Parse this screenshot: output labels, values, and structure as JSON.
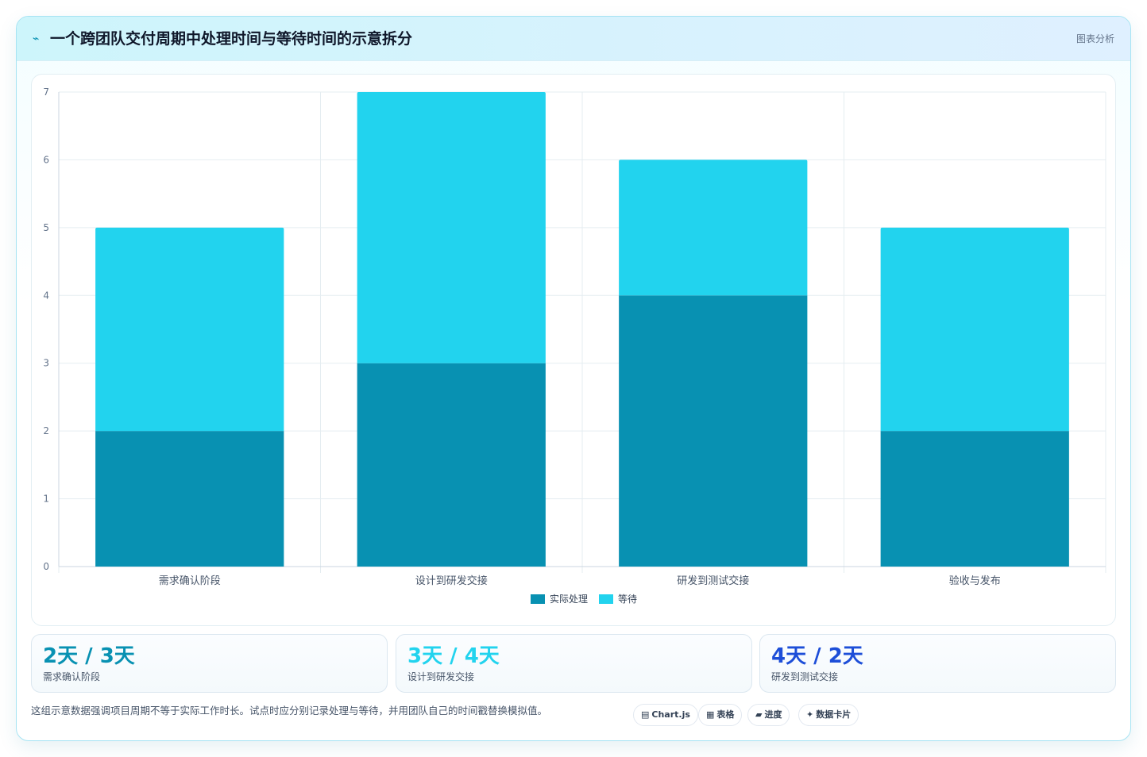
{
  "header": {
    "icon": "spark-icon",
    "icon_glyph": "⌁",
    "title": "一个跨团队交付周期中处理时间与等待时间的示意拆分",
    "badge": "图表分析"
  },
  "chart_data": {
    "type": "bar",
    "stacked": true,
    "categories": [
      "需求确认阶段",
      "设计到研发交接",
      "研发到测试交接",
      "验收与发布"
    ],
    "series": [
      {
        "name": "实际处理",
        "values": [
          2,
          3,
          4,
          2
        ],
        "color": "#0891b2"
      },
      {
        "name": "等待",
        "values": [
          3,
          4,
          2,
          3
        ],
        "color": "#22d3ee"
      }
    ],
    "ylim": [
      0,
      7
    ],
    "yticks": [
      0,
      1,
      2,
      3,
      4,
      5,
      6,
      7
    ],
    "grid": true,
    "legend": "bottom-center"
  },
  "stats": [
    {
      "value": "2天 / 3天",
      "label": "需求确认阶段",
      "color": "#0891b2"
    },
    {
      "value": "3天 / 4天",
      "label": "设计到研发交接",
      "color": "#22d3ee"
    },
    {
      "value": "4天 / 2天",
      "label": "研发到测试交接",
      "color": "#1d4ed8"
    }
  ],
  "footer": {
    "note": "这组示意数据强调项目周期不等于实际工作时长。试点时应分别记录处理与等待，并用团队自己的时间戳替换模拟值。",
    "tags": [
      {
        "icon": "chart-icon",
        "glyph": "▤",
        "label": "Chart.js"
      },
      {
        "icon": "table-icon",
        "glyph": "▦",
        "label": "表格"
      },
      {
        "icon": "progress-icon",
        "glyph": "▰",
        "label": "进度"
      },
      {
        "icon": "data-card-icon",
        "glyph": "✦",
        "label": "数据卡片"
      }
    ]
  }
}
